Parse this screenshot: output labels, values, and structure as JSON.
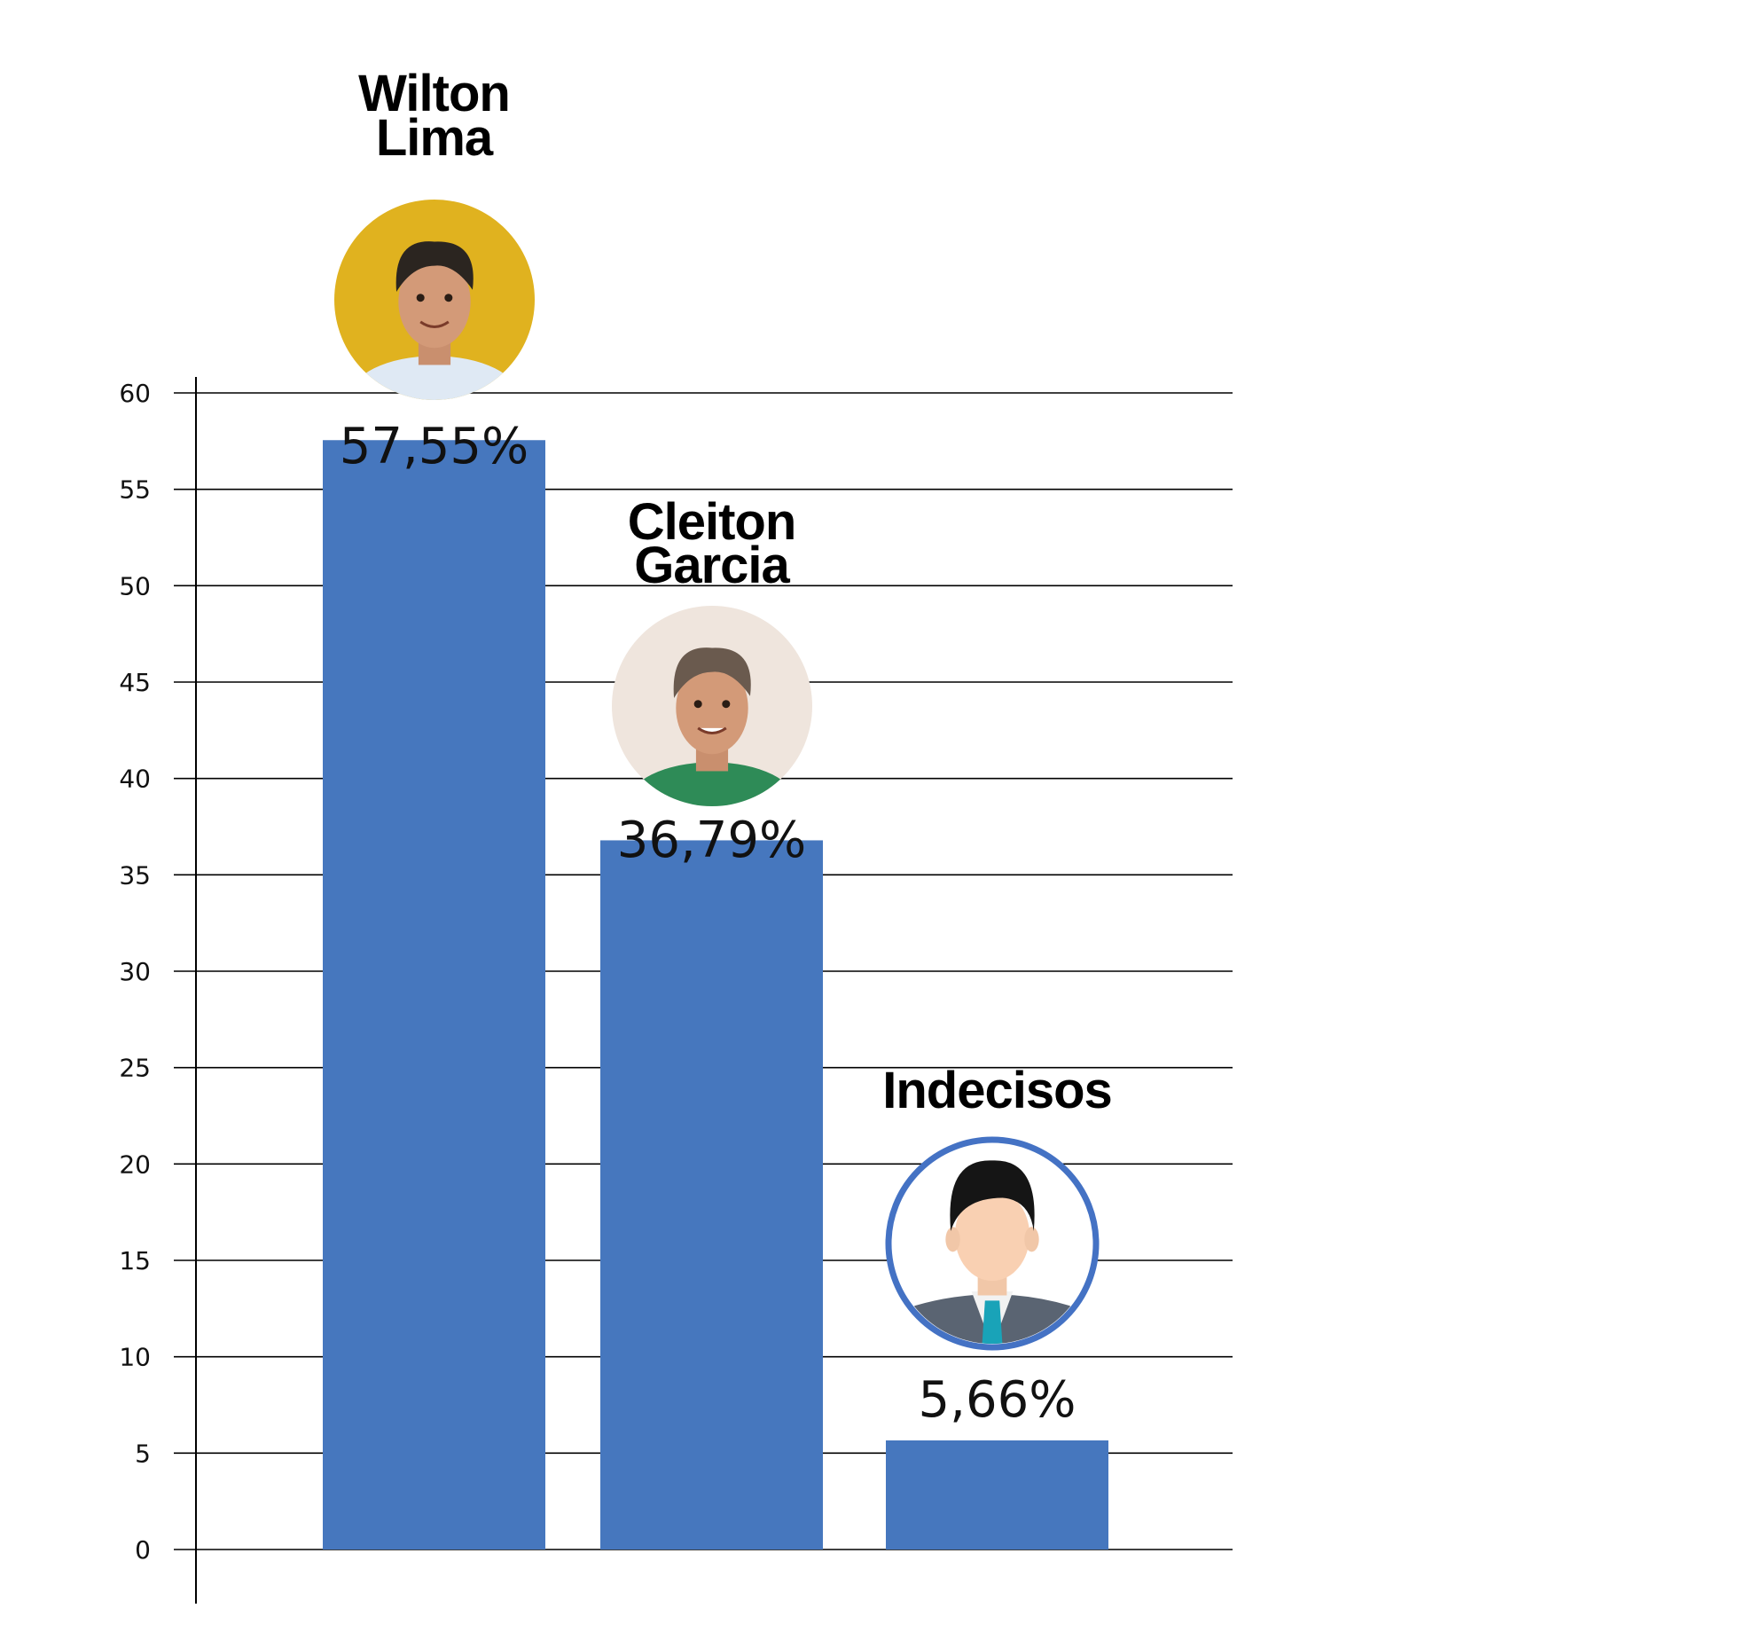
{
  "chart_data": {
    "type": "bar",
    "categories": [
      "Wilton Lima",
      "Cleiton Garcia",
      "Indecisos"
    ],
    "category_lines": [
      [
        "Wilton",
        "Lima"
      ],
      [
        "Cleiton",
        "Garcia"
      ],
      [
        "Indecisos"
      ]
    ],
    "values": [
      57.55,
      36.79,
      5.66
    ],
    "value_labels": [
      "57,55%",
      "36,79%",
      "5,66%"
    ],
    "ylim": [
      0,
      60
    ],
    "yticks": [
      "0",
      "5",
      "10",
      "15",
      "20",
      "25",
      "30",
      "35",
      "40",
      "45",
      "50",
      "55",
      "60"
    ],
    "title": "",
    "xlabel": "",
    "ylabel": "",
    "grid": true,
    "legend": "none"
  },
  "avatars": [
    {
      "category": "Wilton Lima",
      "icon": "person-photo-icon",
      "bg": "#e0b21f"
    },
    {
      "category": "Cleiton Garcia",
      "icon": "person-photo-icon",
      "bg": "#efe5dd"
    },
    {
      "category": "Indecisos",
      "icon": "generic-user-icon",
      "ring": "#4472c4"
    }
  ],
  "colors": {
    "bar": "#4677be",
    "grid": "#000000",
    "axis": "#000000",
    "text": "#111111"
  }
}
